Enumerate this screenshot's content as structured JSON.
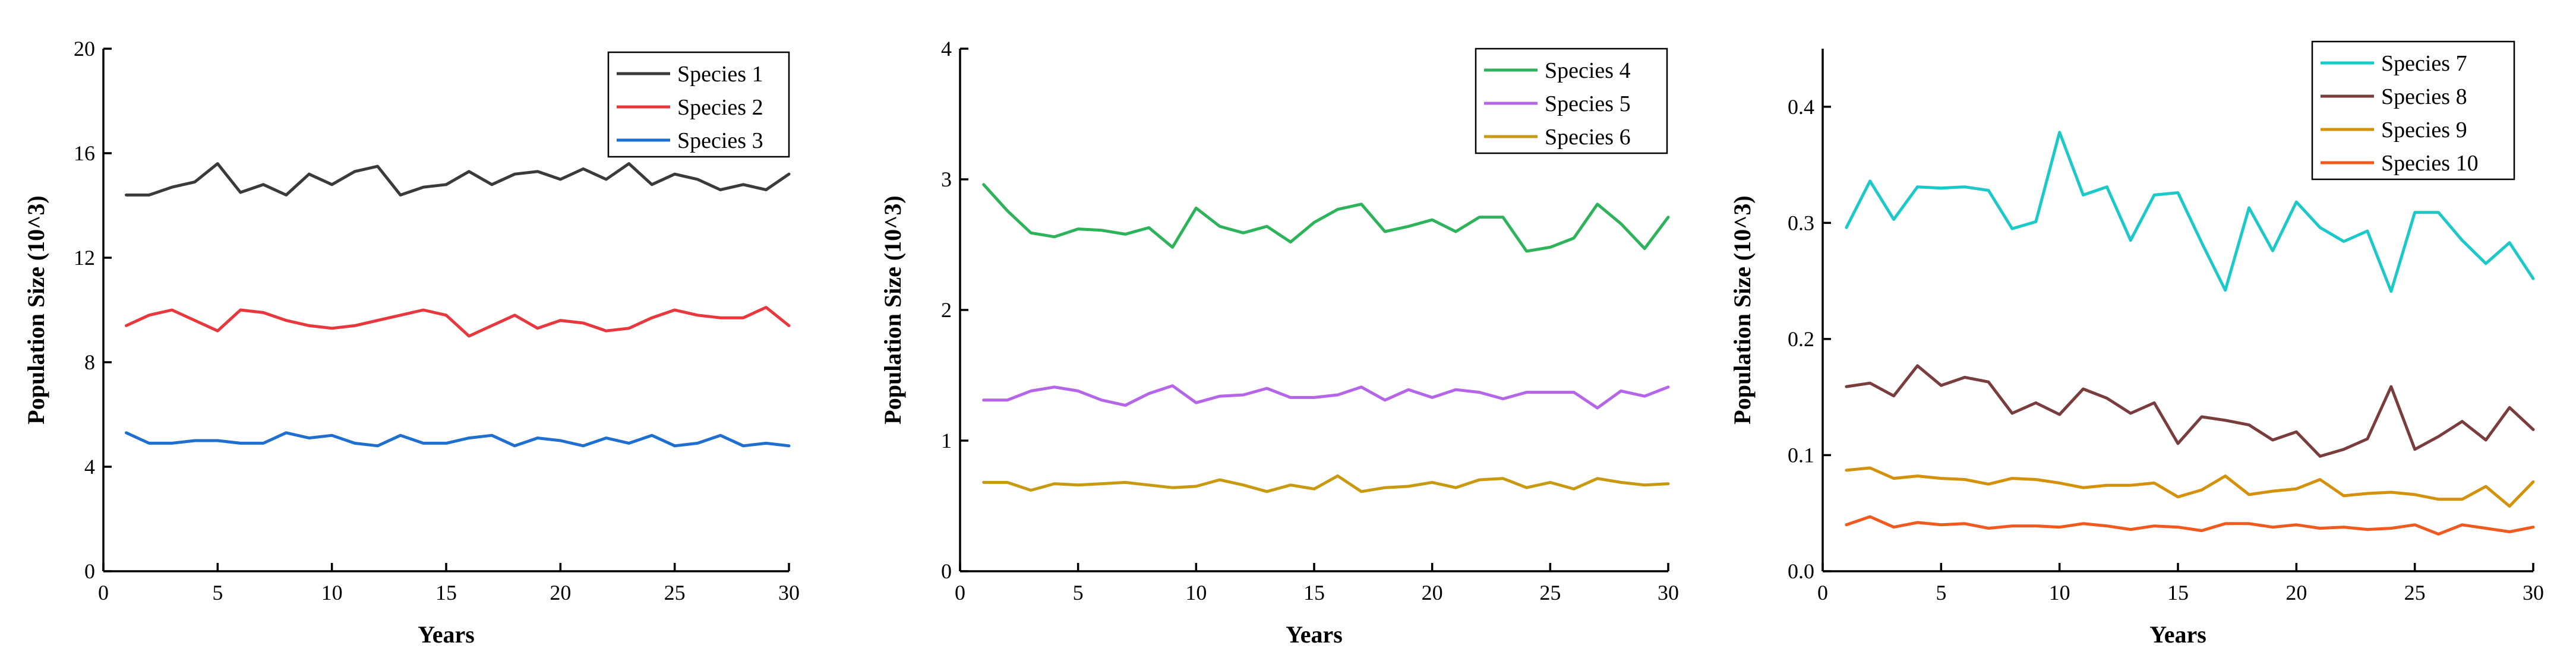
{
  "chart_data": [
    {
      "type": "line",
      "xlabel": "Years",
      "ylabel": "Population Size (10^3)",
      "xlim": [
        0,
        30
      ],
      "ylim": [
        0,
        20
      ],
      "xticks": [
        0,
        5,
        10,
        15,
        20,
        25,
        30
      ],
      "yticks": [
        0,
        4,
        8,
        12,
        16,
        20
      ],
      "xtick_labels": [
        "0",
        "5",
        "10",
        "15",
        "20",
        "25",
        "30"
      ],
      "ytick_labels": [
        "0",
        "4",
        "8",
        "12",
        "16",
        "20"
      ],
      "legend_position": "top-right",
      "grid": false,
      "x": [
        1,
        2,
        3,
        4,
        5,
        6,
        7,
        8,
        9,
        10,
        11,
        12,
        13,
        14,
        15,
        16,
        17,
        18,
        19,
        20,
        21,
        22,
        23,
        24,
        25,
        26,
        27,
        28,
        29,
        30
      ],
      "series": [
        {
          "name": "Species 1",
          "color": "#3a3a3a",
          "values": [
            14.4,
            14.4,
            14.7,
            14.9,
            15.6,
            14.5,
            14.8,
            14.4,
            15.2,
            14.8,
            15.3,
            15.5,
            14.4,
            14.7,
            14.8,
            15.3,
            14.8,
            15.2,
            15.3,
            15.0,
            15.4,
            15.0,
            15.6,
            14.8,
            15.2,
            15.0,
            14.6,
            14.8,
            14.6,
            15.2
          ]
        },
        {
          "name": "Species 2",
          "color": "#e8383d",
          "values": [
            9.4,
            9.8,
            10.0,
            9.6,
            9.2,
            10.0,
            9.9,
            9.6,
            9.4,
            9.3,
            9.4,
            9.6,
            9.8,
            10.0,
            9.8,
            9.0,
            9.4,
            9.8,
            9.3,
            9.6,
            9.5,
            9.2,
            9.3,
            9.7,
            10.0,
            9.8,
            9.7,
            9.7,
            10.1,
            9.4
          ]
        },
        {
          "name": "Species 3",
          "color": "#1f6fd1",
          "values": [
            5.3,
            4.9,
            4.9,
            5.0,
            5.0,
            4.9,
            4.9,
            5.3,
            5.1,
            5.2,
            4.9,
            4.8,
            5.2,
            4.9,
            4.9,
            5.1,
            5.2,
            4.8,
            5.1,
            5.0,
            4.8,
            5.1,
            4.9,
            5.2,
            4.8,
            4.9,
            5.2,
            4.8,
            4.9,
            4.8
          ]
        }
      ]
    },
    {
      "type": "line",
      "xlabel": "Years",
      "ylabel": "Population Size (10^3)",
      "xlim": [
        0,
        30
      ],
      "ylim": [
        0,
        4
      ],
      "xticks": [
        0,
        5,
        10,
        15,
        20,
        25,
        30
      ],
      "yticks": [
        0,
        1,
        2,
        3,
        4
      ],
      "xtick_labels": [
        "0",
        "5",
        "10",
        "15",
        "20",
        "25",
        "30"
      ],
      "ytick_labels": [
        "0",
        "1",
        "2",
        "3",
        "4"
      ],
      "legend_position": "top-right",
      "grid": false,
      "x": [
        1,
        2,
        3,
        4,
        5,
        6,
        7,
        8,
        9,
        10,
        11,
        12,
        13,
        14,
        15,
        16,
        17,
        18,
        19,
        20,
        21,
        22,
        23,
        24,
        25,
        26,
        27,
        28,
        29,
        30
      ],
      "series": [
        {
          "name": "Species 4",
          "color": "#2db35a",
          "values": [
            2.96,
            2.76,
            2.59,
            2.56,
            2.62,
            2.61,
            2.58,
            2.63,
            2.48,
            2.78,
            2.64,
            2.59,
            2.64,
            2.52,
            2.67,
            2.77,
            2.81,
            2.6,
            2.64,
            2.69,
            2.6,
            2.71,
            2.71,
            2.45,
            2.48,
            2.55,
            2.81,
            2.66,
            2.47,
            2.71
          ]
        },
        {
          "name": "Species 5",
          "color": "#b565e8",
          "values": [
            1.31,
            1.31,
            1.38,
            1.41,
            1.38,
            1.31,
            1.27,
            1.36,
            1.42,
            1.29,
            1.34,
            1.35,
            1.4,
            1.33,
            1.33,
            1.35,
            1.41,
            1.31,
            1.39,
            1.33,
            1.39,
            1.37,
            1.32,
            1.37,
            1.37,
            1.37,
            1.25,
            1.38,
            1.34,
            1.41
          ]
        },
        {
          "name": "Species 6",
          "color": "#c89a12",
          "values": [
            0.68,
            0.68,
            0.62,
            0.67,
            0.66,
            0.67,
            0.68,
            0.66,
            0.64,
            0.65,
            0.7,
            0.66,
            0.61,
            0.66,
            0.63,
            0.73,
            0.61,
            0.64,
            0.65,
            0.68,
            0.64,
            0.7,
            0.71,
            0.64,
            0.68,
            0.63,
            0.71,
            0.68,
            0.66,
            0.67
          ]
        }
      ]
    },
    {
      "type": "line",
      "xlabel": "Years",
      "ylabel": "Population Size (10^3)",
      "xlim": [
        0,
        30
      ],
      "ylim": [
        0,
        0.45
      ],
      "xticks": [
        0,
        5,
        10,
        15,
        20,
        25,
        30
      ],
      "yticks": [
        0,
        0.1,
        0.2,
        0.3,
        0.4
      ],
      "xtick_labels": [
        "0",
        "5",
        "10",
        "15",
        "20",
        "25",
        "30"
      ],
      "ytick_labels": [
        "0.0",
        "0.1",
        "0.2",
        "0.3",
        "0.4"
      ],
      "legend_position": "top-right",
      "grid": false,
      "x": [
        1,
        2,
        3,
        4,
        5,
        6,
        7,
        8,
        9,
        10,
        11,
        12,
        13,
        14,
        15,
        16,
        17,
        18,
        19,
        20,
        21,
        22,
        23,
        24,
        25,
        26,
        27,
        28,
        29,
        30
      ],
      "series": [
        {
          "name": "Species 7",
          "color": "#1cc9c9",
          "values": [
            0.296,
            0.336,
            0.303,
            0.331,
            0.33,
            0.331,
            0.328,
            0.295,
            0.301,
            0.378,
            0.324,
            0.331,
            0.285,
            0.324,
            0.326,
            0.283,
            0.242,
            0.313,
            0.276,
            0.318,
            0.296,
            0.284,
            0.293,
            0.241,
            0.309,
            0.309,
            0.285,
            0.265,
            0.283,
            0.252
          ]
        },
        {
          "name": "Species 8",
          "color": "#7a3d3d",
          "values": [
            0.159,
            0.162,
            0.151,
            0.177,
            0.16,
            0.167,
            0.163,
            0.136,
            0.145,
            0.135,
            0.157,
            0.149,
            0.136,
            0.145,
            0.11,
            0.133,
            0.13,
            0.126,
            0.113,
            0.12,
            0.099,
            0.105,
            0.114,
            0.159,
            0.105,
            0.116,
            0.129,
            0.113,
            0.141,
            0.122
          ]
        },
        {
          "name": "Species 9",
          "color": "#d4920c",
          "values": [
            0.087,
            0.089,
            0.08,
            0.082,
            0.08,
            0.079,
            0.075,
            0.08,
            0.079,
            0.076,
            0.072,
            0.074,
            0.074,
            0.076,
            0.064,
            0.07,
            0.082,
            0.066,
            0.069,
            0.071,
            0.079,
            0.065,
            0.067,
            0.068,
            0.066,
            0.062,
            0.062,
            0.073,
            0.056,
            0.077
          ]
        },
        {
          "name": "Species 10",
          "color": "#f05a1e",
          "values": [
            0.04,
            0.047,
            0.038,
            0.042,
            0.04,
            0.041,
            0.037,
            0.039,
            0.039,
            0.038,
            0.041,
            0.039,
            0.036,
            0.039,
            0.038,
            0.035,
            0.041,
            0.041,
            0.038,
            0.04,
            0.037,
            0.038,
            0.036,
            0.037,
            0.04,
            0.032,
            0.04,
            0.037,
            0.034,
            0.038
          ]
        }
      ]
    }
  ]
}
